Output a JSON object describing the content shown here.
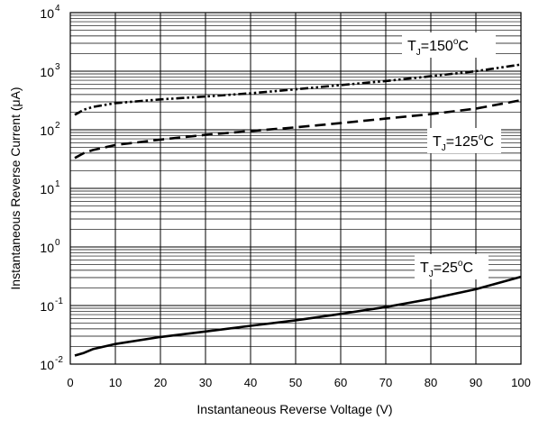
{
  "chart_data": {
    "type": "line",
    "title": "",
    "xlabel": "Instantaneous Reverse Voltage (V)",
    "ylabel": "Instantaneous Reverse Current (μA)",
    "xlim": [
      0,
      100
    ],
    "ylim": [
      0.01,
      10000
    ],
    "y_scale": "log",
    "grid": true,
    "x_ticks": [
      0,
      10,
      20,
      30,
      40,
      50,
      60,
      70,
      80,
      90,
      100
    ],
    "y_ticks": [
      {
        "base": "10",
        "exp": "-2",
        "value": 0.01
      },
      {
        "base": "10",
        "exp": "-1",
        "value": 0.1
      },
      {
        "base": "10",
        "exp": "0",
        "value": 1
      },
      {
        "base": "10",
        "exp": "1",
        "value": 10
      },
      {
        "base": "10",
        "exp": "2",
        "value": 100
      },
      {
        "base": "10",
        "exp": "3",
        "value": 1000
      },
      {
        "base": "10",
        "exp": "4",
        "value": 10000
      }
    ],
    "series": [
      {
        "name": "T_J=150°C",
        "label": {
          "main": "T",
          "sub": "J",
          "value": "=150",
          "sup": "o",
          "unit": "C"
        },
        "style": "dash-dot-dot",
        "x": [
          1,
          3,
          5,
          10,
          20,
          30,
          40,
          50,
          60,
          70,
          80,
          90,
          100
        ],
        "y": [
          180,
          220,
          245,
          285,
          330,
          370,
          420,
          490,
          580,
          680,
          820,
          1000,
          1300
        ]
      },
      {
        "name": "T_J=125°C",
        "label": {
          "main": "T",
          "sub": "J",
          "value": "=125",
          "sup": "o",
          "unit": "C"
        },
        "style": "dashed",
        "x": [
          1,
          3,
          5,
          10,
          20,
          30,
          40,
          50,
          60,
          70,
          80,
          90,
          100
        ],
        "y": [
          33,
          40,
          45,
          55,
          68,
          82,
          95,
          110,
          130,
          155,
          185,
          230,
          320
        ]
      },
      {
        "name": "T_J=25°C",
        "label": {
          "main": "T",
          "sub": "J",
          "value": "=25",
          "sup": "o",
          "unit": "C"
        },
        "style": "solid",
        "x": [
          1,
          3,
          5,
          10,
          20,
          30,
          40,
          50,
          60,
          70,
          80,
          90,
          100
        ],
        "y": [
          0.014,
          0.0155,
          0.018,
          0.022,
          0.029,
          0.036,
          0.045,
          0.056,
          0.072,
          0.094,
          0.13,
          0.19,
          0.31
        ]
      }
    ]
  }
}
